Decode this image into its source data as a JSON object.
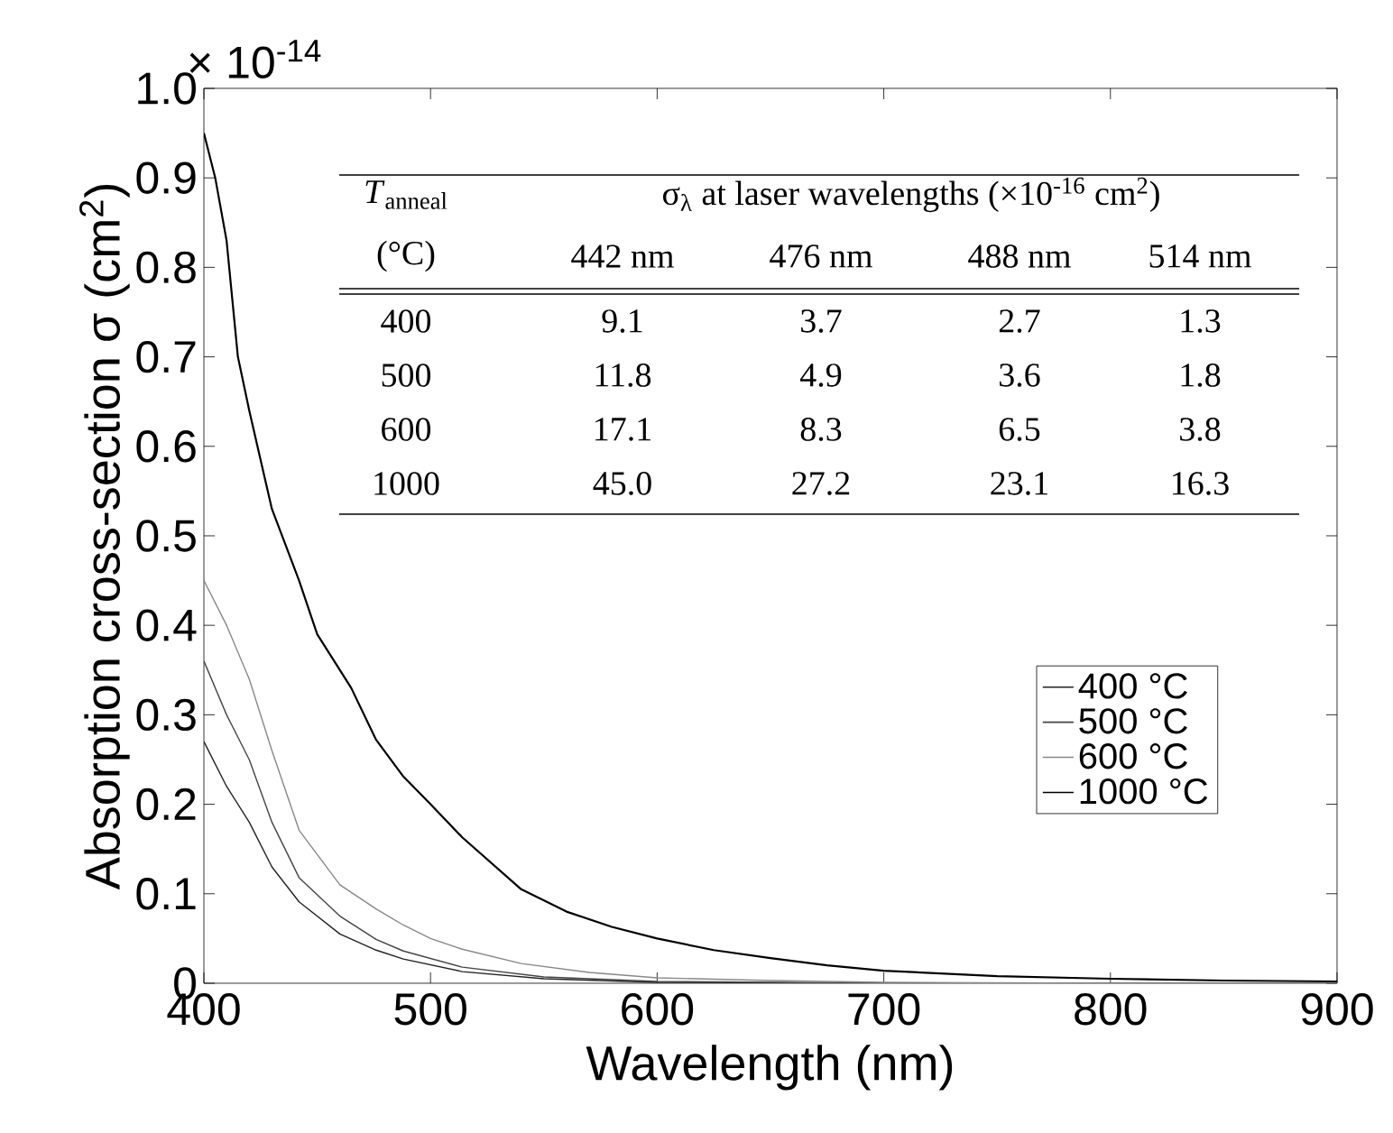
{
  "chart_data": {
    "type": "line",
    "xlabel": "Wavelength (nm)",
    "ylabel": "Absorption cross-section σ (cm$^{2}$)",
    "xlim": [
      400,
      900
    ],
    "xticks": [
      400,
      500,
      600,
      700,
      800,
      900
    ],
    "ylim": [
      0,
      1.0
    ],
    "yticks": [
      0,
      0.1,
      0.2,
      0.3,
      0.4,
      0.5,
      0.6,
      0.7,
      0.8,
      0.9,
      {
        "value": 1.0,
        "label": "1.0"
      }
    ],
    "legend": "right",
    "line_style": "solid",
    "marker": "none",
    "series": [
      {
        "name": "400 °C",
        "color": "#222222",
        "x": [
          400,
          410,
          420,
          430,
          442,
          460,
          476,
          488,
          514,
          550,
          600,
          700,
          800,
          900
        ],
        "values": [
          0.27,
          0.22,
          0.18,
          0.13,
          0.091,
          0.055,
          0.037,
          0.027,
          0.013,
          0.005,
          0.001,
          0,
          0,
          0
        ]
      },
      {
        "name": "500 °C",
        "color": "#444444",
        "x": [
          400,
          410,
          420,
          430,
          442,
          460,
          476,
          488,
          514,
          550,
          600,
          700,
          800,
          900
        ],
        "values": [
          0.36,
          0.3,
          0.25,
          0.18,
          0.118,
          0.075,
          0.049,
          0.036,
          0.018,
          0.007,
          0.002,
          0,
          0,
          0
        ]
      },
      {
        "name": "600 °C",
        "color": "#888888",
        "x": [
          400,
          410,
          420,
          430,
          442,
          460,
          476,
          488,
          500,
          514,
          540,
          570,
          600,
          650,
          700,
          800,
          900
        ],
        "values": [
          0.45,
          0.4,
          0.34,
          0.26,
          0.171,
          0.11,
          0.083,
          0.065,
          0.05,
          0.038,
          0.022,
          0.012,
          0.006,
          0.003,
          0.001,
          0,
          0
        ]
      },
      {
        "name": "1000 °C",
        "color": "#000000",
        "x": [
          400,
          405,
          410,
          415,
          420,
          430,
          442,
          450,
          465,
          476,
          488,
          500,
          514,
          540,
          560,
          580,
          600,
          625,
          650,
          675,
          700,
          750,
          800,
          850,
          900
        ],
        "values": [
          0.95,
          0.9,
          0.83,
          0.7,
          0.64,
          0.53,
          0.45,
          0.39,
          0.33,
          0.272,
          0.231,
          0.2,
          0.163,
          0.105,
          0.08,
          0.063,
          0.05,
          0.037,
          0.028,
          0.02,
          0.014,
          0.008,
          0.005,
          0.003,
          0.002
        ]
      }
    ],
    "annotations": [
      "× 10$^{-14}$",
      "*T*$_{anneal}$",
      "σ$_{λ}$ at laser wavelengths (×10$^{-16}$ cm$^{2}$)",
      "(°C)",
      "442 nm",
      "476 nm",
      "488 nm",
      "514 nm",
      "400",
      "9.1",
      "3.7",
      "2.7",
      "1.3",
      "500",
      "11.8",
      "4.9",
      "3.6",
      "1.8",
      "600",
      "17.1",
      "8.3",
      "6.5",
      "3.8",
      "1000",
      "45.0",
      "27.2",
      "23.1",
      "16.3"
    ]
  }
}
